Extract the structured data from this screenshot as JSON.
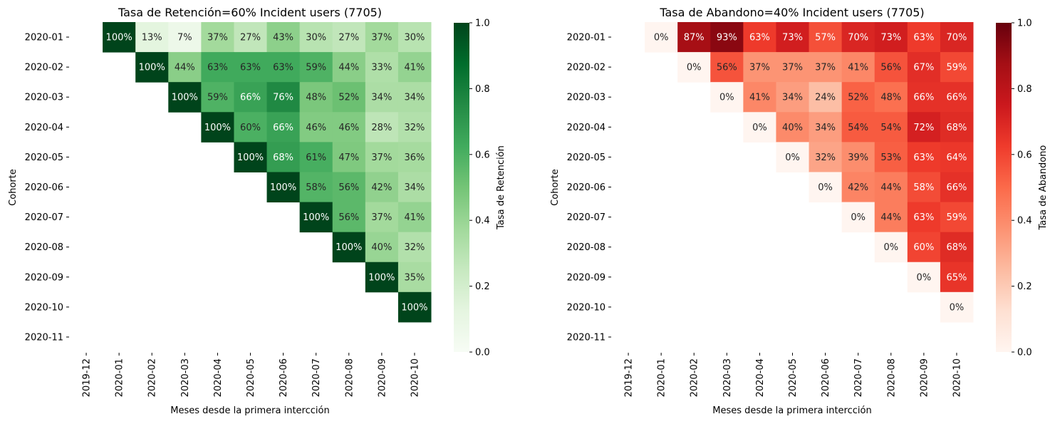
{
  "chart_data": [
    {
      "type": "heatmap",
      "title": "Tasa de Retención=60% Incident users (7705)",
      "xlabel": "Meses desde la primera intercción",
      "ylabel": "Cohorte",
      "x_categories": [
        "2019-12",
        "2020-01",
        "2020-02",
        "2020-03",
        "2020-04",
        "2020-05",
        "2020-06",
        "2020-07",
        "2020-08",
        "2020-09",
        "2020-10"
      ],
      "y_categories": [
        "2020-01",
        "2020-02",
        "2020-03",
        "2020-04",
        "2020-05",
        "2020-06",
        "2020-07",
        "2020-08",
        "2020-09",
        "2020-10",
        "2020-11"
      ],
      "values": [
        [
          null,
          1.0,
          0.13,
          0.07,
          0.37,
          0.27,
          0.43,
          0.3,
          0.27,
          0.37,
          0.3
        ],
        [
          null,
          null,
          1.0,
          0.44,
          0.63,
          0.63,
          0.63,
          0.59,
          0.44,
          0.33,
          0.41
        ],
        [
          null,
          null,
          null,
          1.0,
          0.59,
          0.66,
          0.76,
          0.48,
          0.52,
          0.34,
          0.34
        ],
        [
          null,
          null,
          null,
          null,
          1.0,
          0.6,
          0.66,
          0.46,
          0.46,
          0.28,
          0.32
        ],
        [
          null,
          null,
          null,
          null,
          null,
          1.0,
          0.68,
          0.61,
          0.47,
          0.37,
          0.36
        ],
        [
          null,
          null,
          null,
          null,
          null,
          null,
          1.0,
          0.58,
          0.56,
          0.42,
          0.34
        ],
        [
          null,
          null,
          null,
          null,
          null,
          null,
          null,
          1.0,
          0.56,
          0.37,
          0.41
        ],
        [
          null,
          null,
          null,
          null,
          null,
          null,
          null,
          null,
          1.0,
          0.4,
          0.32
        ],
        [
          null,
          null,
          null,
          null,
          null,
          null,
          null,
          null,
          null,
          1.0,
          0.35
        ],
        [
          null,
          null,
          null,
          null,
          null,
          null,
          null,
          null,
          null,
          null,
          1.0
        ],
        [
          null,
          null,
          null,
          null,
          null,
          null,
          null,
          null,
          null,
          null,
          null
        ]
      ],
      "labels": [
        [
          "",
          "100%",
          "13%",
          "7%",
          "37%",
          "27%",
          "43%",
          "30%",
          "27%",
          "37%",
          "30%"
        ],
        [
          "",
          "",
          "100%",
          "44%",
          "63%",
          "63%",
          "63%",
          "59%",
          "44%",
          "33%",
          "41%"
        ],
        [
          "",
          "",
          "",
          "100%",
          "59%",
          "66%",
          "76%",
          "48%",
          "52%",
          "34%",
          "34%"
        ],
        [
          "",
          "",
          "",
          "",
          "100%",
          "60%",
          "66%",
          "46%",
          "46%",
          "28%",
          "32%"
        ],
        [
          "",
          "",
          "",
          "",
          "",
          "100%",
          "68%",
          "61%",
          "47%",
          "37%",
          "36%"
        ],
        [
          "",
          "",
          "",
          "",
          "",
          "",
          "100%",
          "58%",
          "56%",
          "42%",
          "34%"
        ],
        [
          "",
          "",
          "",
          "",
          "",
          "",
          "",
          "100%",
          "56%",
          "37%",
          "41%"
        ],
        [
          "",
          "",
          "",
          "",
          "",
          "",
          "",
          "",
          "100%",
          "40%",
          "32%"
        ],
        [
          "",
          "",
          "",
          "",
          "",
          "",
          "",
          "",
          "",
          "100%",
          "35%"
        ],
        [
          "",
          "",
          "",
          "",
          "",
          "",
          "",
          "",
          "",
          "",
          "100%"
        ],
        [
          "",
          "",
          "",
          "",
          "",
          "",
          "",
          "",
          "",
          "",
          ""
        ]
      ],
      "colormap": "Greens",
      "colorbar": {
        "label": "Tasa de Retención",
        "range": [
          0,
          1.0
        ],
        "ticks": [
          "0.0",
          "0.2",
          "0.4",
          "0.6",
          "0.8",
          "1.0"
        ]
      }
    },
    {
      "type": "heatmap",
      "title": "Tasa de Abandono=40% Incident users (7705)",
      "xlabel": "Meses desde la primera intercción",
      "ylabel": "Cohorte",
      "x_categories": [
        "2019-12",
        "2020-01",
        "2020-02",
        "2020-03",
        "2020-04",
        "2020-05",
        "2020-06",
        "2020-07",
        "2020-08",
        "2020-09",
        "2020-10"
      ],
      "y_categories": [
        "2020-01",
        "2020-02",
        "2020-03",
        "2020-04",
        "2020-05",
        "2020-06",
        "2020-07",
        "2020-08",
        "2020-09",
        "2020-10",
        "2020-11"
      ],
      "values": [
        [
          null,
          0.0,
          0.87,
          0.93,
          0.63,
          0.73,
          0.57,
          0.7,
          0.73,
          0.63,
          0.7
        ],
        [
          null,
          null,
          0.0,
          0.56,
          0.37,
          0.37,
          0.37,
          0.41,
          0.56,
          0.67,
          0.59
        ],
        [
          null,
          null,
          null,
          0.0,
          0.41,
          0.34,
          0.24,
          0.52,
          0.48,
          0.66,
          0.66
        ],
        [
          null,
          null,
          null,
          null,
          0.0,
          0.4,
          0.34,
          0.54,
          0.54,
          0.72,
          0.68
        ],
        [
          null,
          null,
          null,
          null,
          null,
          0.0,
          0.32,
          0.39,
          0.53,
          0.63,
          0.64
        ],
        [
          null,
          null,
          null,
          null,
          null,
          null,
          0.0,
          0.42,
          0.44,
          0.58,
          0.66
        ],
        [
          null,
          null,
          null,
          null,
          null,
          null,
          null,
          0.0,
          0.44,
          0.63,
          0.59
        ],
        [
          null,
          null,
          null,
          null,
          null,
          null,
          null,
          null,
          0.0,
          0.6,
          0.68
        ],
        [
          null,
          null,
          null,
          null,
          null,
          null,
          null,
          null,
          null,
          0.0,
          0.65
        ],
        [
          null,
          null,
          null,
          null,
          null,
          null,
          null,
          null,
          null,
          null,
          0.0
        ],
        [
          null,
          null,
          null,
          null,
          null,
          null,
          null,
          null,
          null,
          null,
          null
        ]
      ],
      "labels": [
        [
          "",
          "0%",
          "87%",
          "93%",
          "63%",
          "73%",
          "57%",
          "70%",
          "73%",
          "63%",
          "70%"
        ],
        [
          "",
          "",
          "0%",
          "56%",
          "37%",
          "37%",
          "37%",
          "41%",
          "56%",
          "67%",
          "59%"
        ],
        [
          "",
          "",
          "",
          "0%",
          "41%",
          "34%",
          "24%",
          "52%",
          "48%",
          "66%",
          "66%"
        ],
        [
          "",
          "",
          "",
          "",
          "0%",
          "40%",
          "34%",
          "54%",
          "54%",
          "72%",
          "68%"
        ],
        [
          "",
          "",
          "",
          "",
          "",
          "0%",
          "32%",
          "39%",
          "53%",
          "63%",
          "64%"
        ],
        [
          "",
          "",
          "",
          "",
          "",
          "",
          "0%",
          "42%",
          "44%",
          "58%",
          "66%"
        ],
        [
          "",
          "",
          "",
          "",
          "",
          "",
          "",
          "0%",
          "44%",
          "63%",
          "59%"
        ],
        [
          "",
          "",
          "",
          "",
          "",
          "",
          "",
          "",
          "0%",
          "60%",
          "68%"
        ],
        [
          "",
          "",
          "",
          "",
          "",
          "",
          "",
          "",
          "",
          "0%",
          "65%"
        ],
        [
          "",
          "",
          "",
          "",
          "",
          "",
          "",
          "",
          "",
          "",
          "0%"
        ],
        [
          "",
          "",
          "",
          "",
          "",
          "",
          "",
          "",
          "",
          "",
          ""
        ]
      ],
      "colormap": "Reds",
      "colorbar": {
        "label": "Tasa de Abandono",
        "range": [
          0,
          1.0
        ],
        "ticks": [
          "0.0",
          "0.2",
          "0.4",
          "0.6",
          "0.8",
          "1.0"
        ]
      }
    }
  ]
}
